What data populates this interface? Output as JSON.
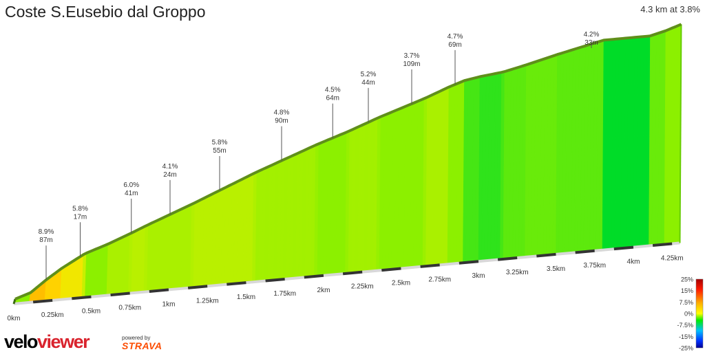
{
  "header": {
    "title": "Coste S.Eusebio dal Groppo",
    "summary": "4.3 km at 3.8%"
  },
  "branding": {
    "logo_part1": "velo",
    "logo_part2": "viewer",
    "powered_by": "powered by",
    "strava": "STRAVA"
  },
  "chart_data": {
    "type": "area",
    "title": "Coste S.Eusebio dal Groppo",
    "subtitle": "4.3 km at 3.8%",
    "x_unit": "km",
    "xlim": [
      0,
      4.4
    ],
    "x_ticks": [
      {
        "value": 0,
        "label": "0km"
      },
      {
        "value": 0.25,
        "label": "0.25km"
      },
      {
        "value": 0.5,
        "label": "0.5km"
      },
      {
        "value": 0.75,
        "label": "0.75km"
      },
      {
        "value": 1,
        "label": "1km"
      },
      {
        "value": 1.25,
        "label": "1.25km"
      },
      {
        "value": 1.5,
        "label": "1.5km"
      },
      {
        "value": 1.75,
        "label": "1.75km"
      },
      {
        "value": 2,
        "label": "2km"
      },
      {
        "value": 2.25,
        "label": "2.25km"
      },
      {
        "value": 2.5,
        "label": "2.5km"
      },
      {
        "value": 2.75,
        "label": "2.75km"
      },
      {
        "value": 3,
        "label": "3km"
      },
      {
        "value": 3.25,
        "label": "3.25km"
      },
      {
        "value": 3.5,
        "label": "3.5km"
      },
      {
        "value": 3.75,
        "label": "3.75km"
      },
      {
        "value": 4,
        "label": "4km"
      },
      {
        "value": 4.25,
        "label": "4.25km"
      }
    ],
    "elevation_profile": [
      {
        "km": 0,
        "m": 0
      },
      {
        "km": 0.1,
        "m": 4
      },
      {
        "km": 0.2,
        "m": 13
      },
      {
        "km": 0.3,
        "m": 21
      },
      {
        "km": 0.45,
        "m": 31
      },
      {
        "km": 0.6,
        "m": 37
      },
      {
        "km": 0.75,
        "m": 44
      },
      {
        "km": 0.85,
        "m": 49
      },
      {
        "km": 1.0,
        "m": 56
      },
      {
        "km": 1.15,
        "m": 63
      },
      {
        "km": 1.35,
        "m": 73
      },
      {
        "km": 1.55,
        "m": 83
      },
      {
        "km": 1.75,
        "m": 92
      },
      {
        "km": 1.95,
        "m": 101
      },
      {
        "km": 2.15,
        "m": 109
      },
      {
        "km": 2.35,
        "m": 118
      },
      {
        "km": 2.5,
        "m": 124
      },
      {
        "km": 2.65,
        "m": 130
      },
      {
        "km": 2.8,
        "m": 137
      },
      {
        "km": 2.9,
        "m": 141
      },
      {
        "km": 3.0,
        "m": 143
      },
      {
        "km": 3.15,
        "m": 145
      },
      {
        "km": 3.3,
        "m": 149
      },
      {
        "km": 3.5,
        "m": 155
      },
      {
        "km": 3.65,
        "m": 159
      },
      {
        "km": 3.8,
        "m": 163
      },
      {
        "km": 4.0,
        "m": 163
      },
      {
        "km": 4.1,
        "m": 163
      },
      {
        "km": 4.2,
        "m": 166
      },
      {
        "km": 4.3,
        "m": 170
      }
    ],
    "segments": [
      {
        "from": 0.0,
        "to": 0.25,
        "grade": 8.9
      },
      {
        "from": 0.25,
        "to": 0.5,
        "grade": 5.8
      },
      {
        "from": 0.5,
        "to": 0.75,
        "grade": 6.0
      },
      {
        "from": 0.75,
        "to": 1.0,
        "grade": 4.1
      },
      {
        "from": 1.0,
        "to": 1.25,
        "grade": 5.8
      },
      {
        "from": 1.25,
        "to": 1.5,
        "grade": 4.8
      },
      {
        "from": 1.5,
        "to": 1.75,
        "grade": 4.5
      },
      {
        "from": 1.75,
        "to": 2.0,
        "grade": 5.2
      },
      {
        "from": 2.0,
        "to": 2.25,
        "grade": 3.7
      },
      {
        "from": 2.25,
        "to": 2.5,
        "grade": 4.7
      },
      {
        "from": 2.5,
        "to": 4.3,
        "grade": 4.2
      }
    ],
    "annotations": [
      {
        "km": 0.2,
        "grade_label": "8.9%",
        "gain_label": "87m"
      },
      {
        "km": 0.42,
        "grade_label": "5.8%",
        "gain_label": "17m"
      },
      {
        "km": 0.75,
        "grade_label": "6.0%",
        "gain_label": "41m"
      },
      {
        "km": 1.0,
        "grade_label": "4.1%",
        "gain_label": "24m"
      },
      {
        "km": 1.32,
        "grade_label": "5.8%",
        "gain_label": "55m"
      },
      {
        "km": 1.72,
        "grade_label": "4.8%",
        "gain_label": "90m"
      },
      {
        "km": 2.05,
        "grade_label": "4.5%",
        "gain_label": "64m"
      },
      {
        "km": 2.28,
        "grade_label": "5.2%",
        "gain_label": "44m"
      },
      {
        "km": 2.56,
        "grade_label": "3.7%",
        "gain_label": "109m"
      },
      {
        "km": 2.84,
        "grade_label": "4.7%",
        "gain_label": "69m"
      },
      {
        "km": 3.72,
        "grade_label": "4.2%",
        "gain_label": "33m"
      }
    ],
    "legend": {
      "placement": "bottom-right",
      "labels": [
        "25%",
        "15%",
        "7.5%",
        "0%",
        "-7.5%",
        "-15%",
        "-25%"
      ]
    }
  }
}
